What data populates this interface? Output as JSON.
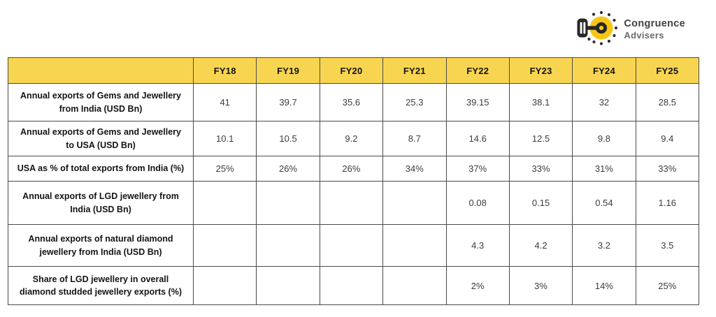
{
  "logo": {
    "line1": "Congruence",
    "line2": "Advisers"
  },
  "colors": {
    "headerYellow": "#f8d550",
    "logoYellow": "#f9c515",
    "border": "#4a4a4a"
  },
  "table": {
    "columns": [
      "",
      "FY18",
      "FY19",
      "FY20",
      "FY21",
      "FY22",
      "FY23",
      "FY24",
      "FY25"
    ],
    "rows": [
      {
        "label": "Annual exports of Gems and Jewellery from India (USD Bn)",
        "values": [
          "41",
          "39.7",
          "35.6",
          "25.3",
          "39.15",
          "38.1",
          "32",
          "28.5"
        ]
      },
      {
        "label": "Annual exports of Gems and Jewellery to USA (USD Bn)",
        "values": [
          "10.1",
          "10.5",
          "9.2",
          "8.7",
          "14.6",
          "12.5",
          "9.8",
          "9.4"
        ]
      },
      {
        "label": "USA as % of total exports from India (%)",
        "values": [
          "25%",
          "26%",
          "26%",
          "34%",
          "37%",
          "33%",
          "31%",
          "33%"
        ]
      },
      {
        "label": "Annual exports of LGD jewellery from India (USD Bn)",
        "values": [
          "",
          "",
          "",
          "",
          "0.08",
          "0.15",
          "0.54",
          "1.16"
        ]
      },
      {
        "label": "Annual exports of natural diamond jewellery from India (USD Bn)",
        "values": [
          "",
          "",
          "",
          "",
          "4.3",
          "4.2",
          "3.2",
          "3.5"
        ]
      },
      {
        "label": "Share of LGD jewellery in overall diamond studded jewellery exports (%)",
        "values": [
          "",
          "",
          "",
          "",
          "2%",
          "3%",
          "14%",
          "25%"
        ]
      }
    ]
  },
  "chart_data": {
    "type": "table",
    "categories": [
      "FY18",
      "FY19",
      "FY20",
      "FY21",
      "FY22",
      "FY23",
      "FY24",
      "FY25"
    ],
    "series": [
      {
        "name": "Annual exports of Gems and Jewellery from India (USD Bn)",
        "values": [
          41,
          39.7,
          35.6,
          25.3,
          39.15,
          38.1,
          32,
          28.5
        ]
      },
      {
        "name": "Annual exports of Gems and Jewellery to USA (USD Bn)",
        "values": [
          10.1,
          10.5,
          9.2,
          8.7,
          14.6,
          12.5,
          9.8,
          9.4
        ]
      },
      {
        "name": "USA as % of total exports from India (%)",
        "values": [
          25,
          26,
          26,
          34,
          37,
          33,
          31,
          33
        ]
      },
      {
        "name": "Annual exports of LGD jewellery from India (USD Bn)",
        "values": [
          null,
          null,
          null,
          null,
          0.08,
          0.15,
          0.54,
          1.16
        ]
      },
      {
        "name": "Annual exports of natural diamond jewellery from India (USD Bn)",
        "values": [
          null,
          null,
          null,
          null,
          4.3,
          4.2,
          3.2,
          3.5
        ]
      },
      {
        "name": "Share of LGD jewellery in overall diamond studded jewellery exports (%)",
        "values": [
          null,
          null,
          null,
          null,
          2,
          3,
          14,
          25
        ]
      }
    ],
    "title": "",
    "legend_position": "none",
    "grid": true
  }
}
